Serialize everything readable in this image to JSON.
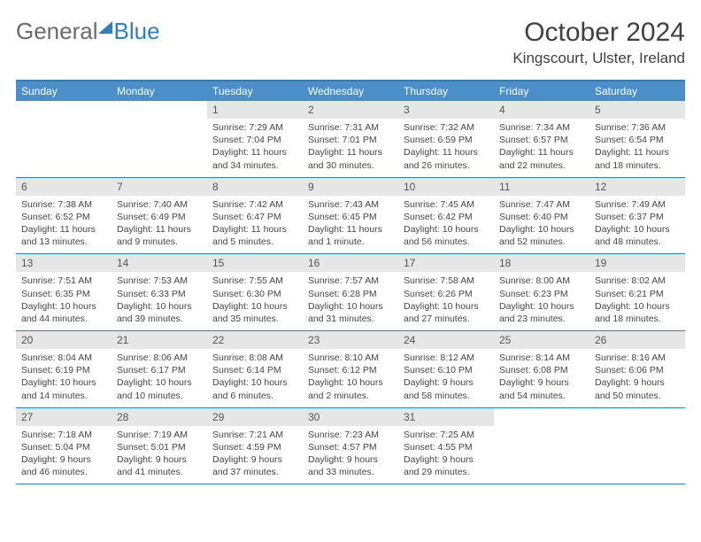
{
  "logo": {
    "part1": "General",
    "part2": "Blue"
  },
  "title": "October 2024",
  "location": "Kingscourt, Ulster, Ireland",
  "colors": {
    "header_bar": "#4a8fc9",
    "rule": "#2d7fc4",
    "daynum_bg": "#e6e6e6",
    "text": "#454545",
    "white": "#ffffff"
  },
  "weekdays": [
    "Sunday",
    "Monday",
    "Tuesday",
    "Wednesday",
    "Thursday",
    "Friday",
    "Saturday"
  ],
  "weeks": [
    [
      {
        "empty": true
      },
      {
        "empty": true
      },
      {
        "day": "1",
        "sunrise": "7:29 AM",
        "sunset": "7:04 PM",
        "daylight": "11 hours and 34 minutes."
      },
      {
        "day": "2",
        "sunrise": "7:31 AM",
        "sunset": "7:01 PM",
        "daylight": "11 hours and 30 minutes."
      },
      {
        "day": "3",
        "sunrise": "7:32 AM",
        "sunset": "6:59 PM",
        "daylight": "11 hours and 26 minutes."
      },
      {
        "day": "4",
        "sunrise": "7:34 AM",
        "sunset": "6:57 PM",
        "daylight": "11 hours and 22 minutes."
      },
      {
        "day": "5",
        "sunrise": "7:36 AM",
        "sunset": "6:54 PM",
        "daylight": "11 hours and 18 minutes."
      }
    ],
    [
      {
        "day": "6",
        "sunrise": "7:38 AM",
        "sunset": "6:52 PM",
        "daylight": "11 hours and 13 minutes."
      },
      {
        "day": "7",
        "sunrise": "7:40 AM",
        "sunset": "6:49 PM",
        "daylight": "11 hours and 9 minutes."
      },
      {
        "day": "8",
        "sunrise": "7:42 AM",
        "sunset": "6:47 PM",
        "daylight": "11 hours and 5 minutes."
      },
      {
        "day": "9",
        "sunrise": "7:43 AM",
        "sunset": "6:45 PM",
        "daylight": "11 hours and 1 minute."
      },
      {
        "day": "10",
        "sunrise": "7:45 AM",
        "sunset": "6:42 PM",
        "daylight": "10 hours and 56 minutes."
      },
      {
        "day": "11",
        "sunrise": "7:47 AM",
        "sunset": "6:40 PM",
        "daylight": "10 hours and 52 minutes."
      },
      {
        "day": "12",
        "sunrise": "7:49 AM",
        "sunset": "6:37 PM",
        "daylight": "10 hours and 48 minutes."
      }
    ],
    [
      {
        "day": "13",
        "sunrise": "7:51 AM",
        "sunset": "6:35 PM",
        "daylight": "10 hours and 44 minutes."
      },
      {
        "day": "14",
        "sunrise": "7:53 AM",
        "sunset": "6:33 PM",
        "daylight": "10 hours and 39 minutes."
      },
      {
        "day": "15",
        "sunrise": "7:55 AM",
        "sunset": "6:30 PM",
        "daylight": "10 hours and 35 minutes."
      },
      {
        "day": "16",
        "sunrise": "7:57 AM",
        "sunset": "6:28 PM",
        "daylight": "10 hours and 31 minutes."
      },
      {
        "day": "17",
        "sunrise": "7:58 AM",
        "sunset": "6:26 PM",
        "daylight": "10 hours and 27 minutes."
      },
      {
        "day": "18",
        "sunrise": "8:00 AM",
        "sunset": "6:23 PM",
        "daylight": "10 hours and 23 minutes."
      },
      {
        "day": "19",
        "sunrise": "8:02 AM",
        "sunset": "6:21 PM",
        "daylight": "10 hours and 18 minutes."
      }
    ],
    [
      {
        "day": "20",
        "sunrise": "8:04 AM",
        "sunset": "6:19 PM",
        "daylight": "10 hours and 14 minutes."
      },
      {
        "day": "21",
        "sunrise": "8:06 AM",
        "sunset": "6:17 PM",
        "daylight": "10 hours and 10 minutes."
      },
      {
        "day": "22",
        "sunrise": "8:08 AM",
        "sunset": "6:14 PM",
        "daylight": "10 hours and 6 minutes."
      },
      {
        "day": "23",
        "sunrise": "8:10 AM",
        "sunset": "6:12 PM",
        "daylight": "10 hours and 2 minutes."
      },
      {
        "day": "24",
        "sunrise": "8:12 AM",
        "sunset": "6:10 PM",
        "daylight": "9 hours and 58 minutes."
      },
      {
        "day": "25",
        "sunrise": "8:14 AM",
        "sunset": "6:08 PM",
        "daylight": "9 hours and 54 minutes."
      },
      {
        "day": "26",
        "sunrise": "8:16 AM",
        "sunset": "6:06 PM",
        "daylight": "9 hours and 50 minutes."
      }
    ],
    [
      {
        "day": "27",
        "sunrise": "7:18 AM",
        "sunset": "5:04 PM",
        "daylight": "9 hours and 46 minutes."
      },
      {
        "day": "28",
        "sunrise": "7:19 AM",
        "sunset": "5:01 PM",
        "daylight": "9 hours and 41 minutes."
      },
      {
        "day": "29",
        "sunrise": "7:21 AM",
        "sunset": "4:59 PM",
        "daylight": "9 hours and 37 minutes."
      },
      {
        "day": "30",
        "sunrise": "7:23 AM",
        "sunset": "4:57 PM",
        "daylight": "9 hours and 33 minutes."
      },
      {
        "day": "31",
        "sunrise": "7:25 AM",
        "sunset": "4:55 PM",
        "daylight": "9 hours and 29 minutes."
      },
      {
        "empty": true
      },
      {
        "empty": true
      }
    ]
  ]
}
